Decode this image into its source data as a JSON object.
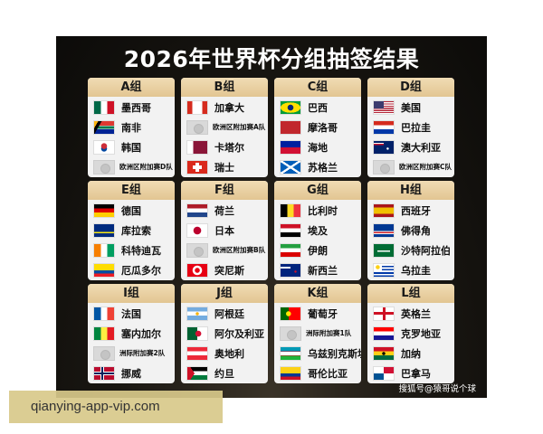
{
  "title": "2026年世界杯分组抽签结果",
  "watermark": "搜狐号@猿哥说个球",
  "caption": "qianying-app-vip.com",
  "groups": [
    {
      "label": "A组",
      "teams": [
        {
          "name": "墨西哥",
          "flag": "mx"
        },
        {
          "name": "南非",
          "flag": "za"
        },
        {
          "name": "韩国",
          "flag": "kr"
        },
        {
          "name": "欧洲区附加赛D队",
          "flag": "ph"
        }
      ]
    },
    {
      "label": "B组",
      "teams": [
        {
          "name": "加拿大",
          "flag": "ca"
        },
        {
          "name": "欧洲区附加赛A队",
          "flag": "ph"
        },
        {
          "name": "卡塔尔",
          "flag": "qa"
        },
        {
          "name": "瑞士",
          "flag": "ch"
        }
      ]
    },
    {
      "label": "C组",
      "teams": [
        {
          "name": "巴西",
          "flag": "br"
        },
        {
          "name": "摩洛哥",
          "flag": "ma"
        },
        {
          "name": "海地",
          "flag": "ht"
        },
        {
          "name": "苏格兰",
          "flag": "sct"
        }
      ]
    },
    {
      "label": "D组",
      "teams": [
        {
          "name": "美国",
          "flag": "us"
        },
        {
          "name": "巴拉圭",
          "flag": "py"
        },
        {
          "name": "澳大利亚",
          "flag": "au"
        },
        {
          "name": "欧洲区附加赛C队",
          "flag": "ph"
        }
      ]
    },
    {
      "label": "E组",
      "teams": [
        {
          "name": "德国",
          "flag": "de"
        },
        {
          "name": "库拉索",
          "flag": "cw"
        },
        {
          "name": "科特迪瓦",
          "flag": "ci"
        },
        {
          "name": "厄瓜多尔",
          "flag": "ec"
        }
      ]
    },
    {
      "label": "F组",
      "teams": [
        {
          "name": "荷兰",
          "flag": "nl"
        },
        {
          "name": "日本",
          "flag": "jp"
        },
        {
          "name": "欧洲区附加赛B队",
          "flag": "ph"
        },
        {
          "name": "突尼斯",
          "flag": "tn"
        }
      ]
    },
    {
      "label": "G组",
      "teams": [
        {
          "name": "比利时",
          "flag": "be"
        },
        {
          "name": "埃及",
          "flag": "eg"
        },
        {
          "name": "伊朗",
          "flag": "ir"
        },
        {
          "name": "新西兰",
          "flag": "nz"
        }
      ]
    },
    {
      "label": "H组",
      "teams": [
        {
          "name": "西班牙",
          "flag": "es"
        },
        {
          "name": "佛得角",
          "flag": "cv"
        },
        {
          "name": "沙特阿拉伯",
          "flag": "sa"
        },
        {
          "name": "乌拉圭",
          "flag": "uy"
        }
      ]
    },
    {
      "label": "I组",
      "teams": [
        {
          "name": "法国",
          "flag": "fr"
        },
        {
          "name": "塞内加尔",
          "flag": "sn"
        },
        {
          "name": "洲际附加赛2队",
          "flag": "ph"
        },
        {
          "name": "挪威",
          "flag": "no"
        }
      ]
    },
    {
      "label": "J组",
      "teams": [
        {
          "name": "阿根廷",
          "flag": "ar"
        },
        {
          "name": "阿尔及利亚",
          "flag": "dz"
        },
        {
          "name": "奥地利",
          "flag": "at"
        },
        {
          "name": "约旦",
          "flag": "jo"
        }
      ]
    },
    {
      "label": "K组",
      "teams": [
        {
          "name": "葡萄牙",
          "flag": "pt"
        },
        {
          "name": "洲际附加赛1队",
          "flag": "ph"
        },
        {
          "name": "乌兹别克斯坦",
          "flag": "uz"
        },
        {
          "name": "哥伦比亚",
          "flag": "co"
        }
      ]
    },
    {
      "label": "L组",
      "teams": [
        {
          "name": "英格兰",
          "flag": "eng"
        },
        {
          "name": "克罗地亚",
          "flag": "hr"
        },
        {
          "name": "加纳",
          "flag": "gh"
        },
        {
          "name": "巴拿马",
          "flag": "pa"
        }
      ]
    }
  ]
}
